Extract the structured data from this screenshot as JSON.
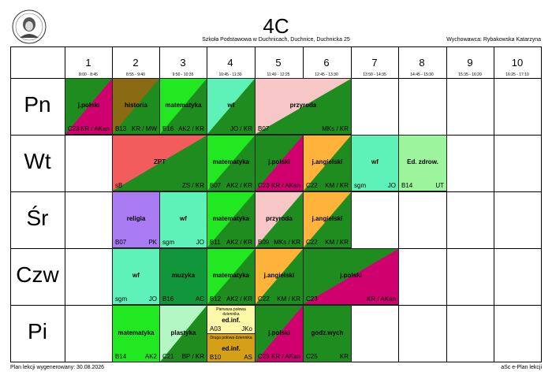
{
  "header": {
    "title": "4C",
    "school": "Szkoła Podstawowa w Duchnicach, Duchnice, Duchnicka 25",
    "teacher": "Wychowawca: Rybakowska Katarzyna"
  },
  "periods": [
    {
      "num": "1",
      "time": "8:00 - 8:45"
    },
    {
      "num": "2",
      "time": "8:55 - 9:40"
    },
    {
      "num": "3",
      "time": "9:50 - 10:35"
    },
    {
      "num": "4",
      "time": "10:45 - 11:30"
    },
    {
      "num": "5",
      "time": "11:40 - 12:25"
    },
    {
      "num": "6",
      "time": "12:45 - 13:30"
    },
    {
      "num": "7",
      "time": "13:50 - 14:35"
    },
    {
      "num": "8",
      "time": "14:45 - 15:30"
    },
    {
      "num": "9",
      "time": "15:35 - 16:20"
    },
    {
      "num": "10",
      "time": "16:25 - 17:10"
    }
  ],
  "days": [
    "Pn",
    "Wt",
    "Śr",
    "Czw",
    "Pi"
  ],
  "lessons": {
    "pn_jpolski": {
      "subject": "j.polski",
      "room": "C23",
      "teacher": "KR / AKan",
      "c1": "#1e8c1e",
      "c2": "#d0006f"
    },
    "pn_historia": {
      "subject": "historia",
      "room": "B13",
      "teacher": "KR / MW",
      "c1": "#8a6a12",
      "c2": "#1e8c1e"
    },
    "pn_matematyka": {
      "subject": "matematyka",
      "room": "B16",
      "teacher": "AK2 / KR",
      "c1": "#22e822",
      "c2": "#1e8c1e"
    },
    "pn_wf": {
      "subject": "wf",
      "room": "",
      "teacher": "JO / KR",
      "c1": "#5ff2b8",
      "c2": "#1e8c1e"
    },
    "pn_przyroda": {
      "subject": "przyroda",
      "room": "B07",
      "teacher": "MKs / KR",
      "c1": "#f7c6c6",
      "c2": "#1e8c1e"
    },
    "wt_zpt": {
      "subject": "ZPT",
      "room": "sB",
      "teacher": "ZS / KR",
      "c1": "#f25c5c",
      "c2": "#1e8c1e"
    },
    "wt_matematyka": {
      "subject": "matematyka",
      "room": "B07",
      "teacher": "AK2 / KR",
      "c1": "#22e822",
      "c2": "#1e8c1e"
    },
    "wt_jpolski": {
      "subject": "j.polski",
      "room": "C23",
      "teacher": "KR / AKan",
      "c1": "#1e8c1e",
      "c2": "#d0006f"
    },
    "wt_jangielski": {
      "subject": "j.angielski",
      "room": "C22",
      "teacher": "KM / KR",
      "c1": "#ffb33a",
      "c2": "#1e8c1e"
    },
    "wt_wf": {
      "subject": "wf",
      "room": "sgm",
      "teacher": "JO",
      "c1": "#5ff2b8",
      "c2": "#5ff2b8"
    },
    "wt_edzdrow": {
      "subject": "Ed. zdrow.",
      "room": "B14",
      "teacher": "UT",
      "c1": "#9cf59c",
      "c2": "#9cf59c"
    },
    "sr_religia": {
      "subject": "religia",
      "room": "B07",
      "teacher": "PK",
      "c1": "#a97bf2",
      "c2": "#a97bf2"
    },
    "sr_wf": {
      "subject": "wf",
      "room": "sgm",
      "teacher": "JO",
      "c1": "#5ff2b8",
      "c2": "#5ff2b8"
    },
    "sr_matematyka": {
      "subject": "matematyka",
      "room": "B11",
      "teacher": "AK2 / KR",
      "c1": "#22e822",
      "c2": "#1e8c1e"
    },
    "sr_przyroda": {
      "subject": "przyroda",
      "room": "B09",
      "teacher": "MKs / KR",
      "c1": "#f7c6c6",
      "c2": "#1e8c1e"
    },
    "sr_jangielski": {
      "subject": "j.angielski",
      "room": "C22",
      "teacher": "KM / KR",
      "c1": "#ffb33a",
      "c2": "#1e8c1e"
    },
    "czw_wf": {
      "subject": "wf",
      "room": "sgm",
      "teacher": "JO",
      "c1": "#5ff2b8",
      "c2": "#5ff2b8"
    },
    "czw_muzyka": {
      "subject": "muzyka",
      "room": "B16",
      "teacher": "AC",
      "c1": "#11963c",
      "c2": "#11963c"
    },
    "czw_matematyka": {
      "subject": "matematyka",
      "room": "B12",
      "teacher": "AK2 / KR",
      "c1": "#22e822",
      "c2": "#1e8c1e"
    },
    "czw_jangielski": {
      "subject": "j.angielski",
      "room": "C22",
      "teacher": "KM / KR",
      "c1": "#ffb33a",
      "c2": "#1e8c1e"
    },
    "czw_jpolski": {
      "subject": "j.polski",
      "room": "C23",
      "teacher": "KR / AKan",
      "c1": "#1e8c1e",
      "c2": "#d0006f"
    },
    "pi_matematyka": {
      "subject": "matematyka",
      "room": "B14",
      "teacher": "AK2",
      "c1": "#22e822",
      "c2": "#22e822"
    },
    "pi_plastyka": {
      "subject": "plastyka",
      "room": "C21",
      "teacher": "BP / KR",
      "c1": "#b3f7c4",
      "c2": "#1e8c1e"
    },
    "pi_edinf1": {
      "note": "Pierwsza połowa dziennika",
      "subject": "ed.inf.",
      "room": "A03",
      "teacher": "JKo",
      "c1": "#fff8a8",
      "c2": "#fff8a8"
    },
    "pi_edinf2": {
      "note": "Druga połowa dziennika",
      "subject": "ed.inf.",
      "room": "B10",
      "teacher": "AS",
      "c1": "#d4a017",
      "c2": "#d4a017"
    },
    "pi_jpolski": {
      "subject": "j.polski",
      "room": "C23",
      "teacher": "KR / AKan",
      "c1": "#1e8c1e",
      "c2": "#d0006f"
    },
    "pi_godzwych": {
      "subject": "godz.wych",
      "room": "C25",
      "teacher": "KR",
      "c1": "#1e8c1e",
      "c2": "#1e8c1e"
    }
  },
  "footer": {
    "generated": "Plan lekcji wygenerowany: 30.08.2026",
    "brand": "aSc e-Plan lekcji"
  }
}
